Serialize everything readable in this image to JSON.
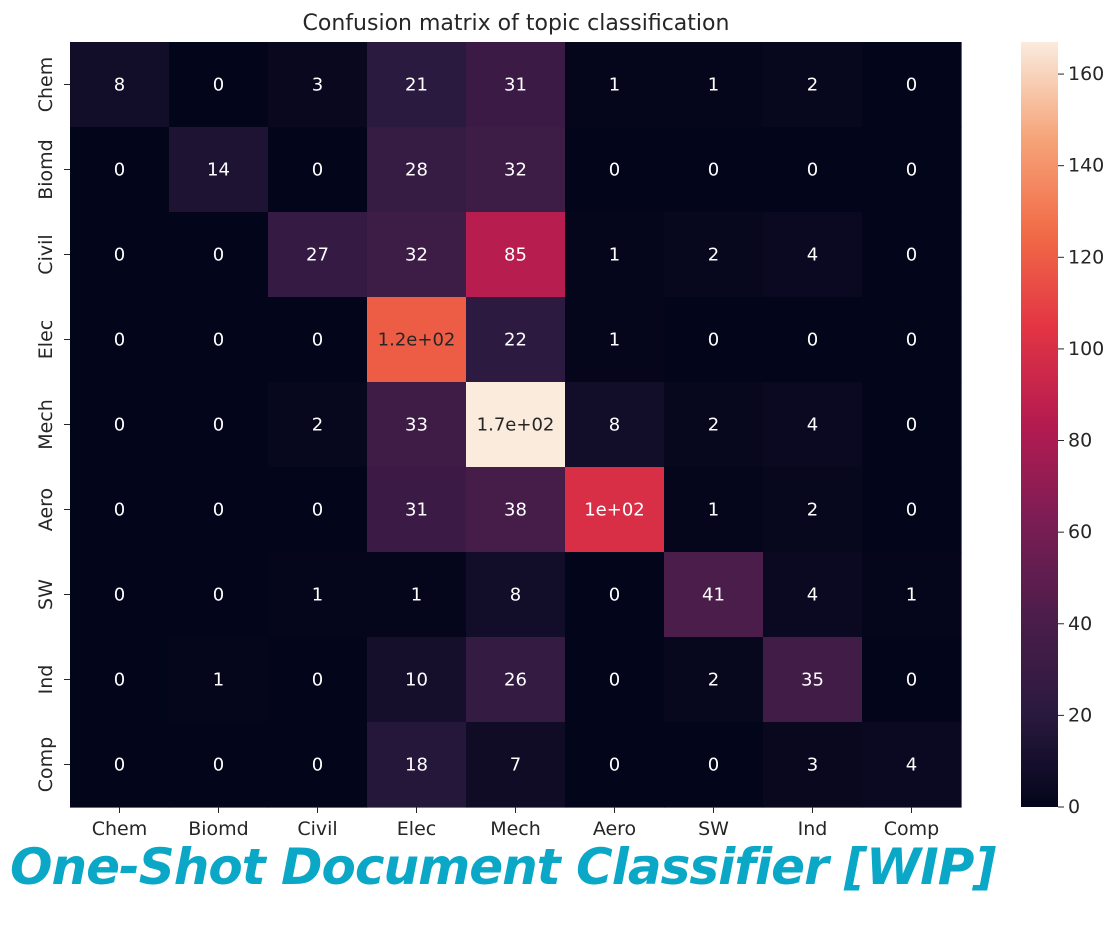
{
  "chart_data": {
    "type": "heatmap",
    "title": "Confusion matrix of topic classification",
    "x_categories": [
      "Chem",
      "Biomd",
      "Civil",
      "Elec",
      "Mech",
      "Aero",
      "SW",
      "Ind",
      "Comp"
    ],
    "y_categories": [
      "Chem",
      "Biomd",
      "Civil",
      "Elec",
      "Mech",
      "Aero",
      "SW",
      "Ind",
      "Comp"
    ],
    "values": [
      [
        8,
        0,
        3,
        21,
        31,
        1,
        1,
        2,
        0
      ],
      [
        0,
        14,
        0,
        28,
        32,
        0,
        0,
        0,
        0
      ],
      [
        0,
        0,
        27,
        32,
        85,
        1,
        2,
        4,
        0
      ],
      [
        0,
        0,
        0,
        120,
        22,
        1,
        0,
        0,
        0
      ],
      [
        0,
        0,
        2,
        33,
        170,
        8,
        2,
        4,
        0
      ],
      [
        0,
        0,
        0,
        31,
        38,
        100,
        1,
        2,
        0
      ],
      [
        0,
        0,
        1,
        1,
        8,
        0,
        41,
        4,
        1
      ],
      [
        0,
        1,
        0,
        10,
        26,
        0,
        2,
        35,
        0
      ],
      [
        0,
        0,
        0,
        18,
        7,
        0,
        0,
        3,
        4
      ]
    ],
    "annotations": [
      [
        "8",
        "0",
        "3",
        "21",
        "31",
        "1",
        "1",
        "2",
        "0"
      ],
      [
        "0",
        "14",
        "0",
        "28",
        "32",
        "0",
        "0",
        "0",
        "0"
      ],
      [
        "0",
        "0",
        "27",
        "32",
        "85",
        "1",
        "2",
        "4",
        "0"
      ],
      [
        "0",
        "0",
        "0",
        "1.2e+02",
        "22",
        "1",
        "0",
        "0",
        "0"
      ],
      [
        "0",
        "0",
        "2",
        "33",
        "1.7e+02",
        "8",
        "2",
        "4",
        "0"
      ],
      [
        "0",
        "0",
        "0",
        "31",
        "38",
        "1e+02",
        "1",
        "2",
        "0"
      ],
      [
        "0",
        "0",
        "1",
        "1",
        "8",
        "0",
        "41",
        "4",
        "1"
      ],
      [
        "0",
        "1",
        "0",
        "10",
        "26",
        "0",
        "2",
        "35",
        "0"
      ],
      [
        "0",
        "0",
        "0",
        "18",
        "7",
        "0",
        "0",
        "3",
        "4"
      ]
    ],
    "colorbar": {
      "vmin": 0,
      "vmax": 167,
      "ticks": [
        0,
        20,
        40,
        60,
        80,
        100,
        120,
        140,
        160
      ],
      "colormap": "rocket"
    }
  },
  "banner_text": "One-Shot Document Classifier [WIP]",
  "colors": {
    "banner": "#0aa7c6",
    "text": "#262626"
  }
}
